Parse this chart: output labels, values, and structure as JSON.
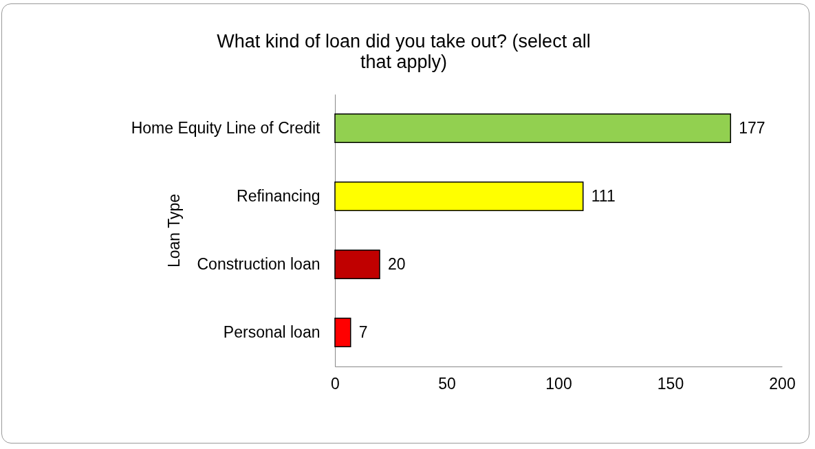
{
  "chart_data": {
    "type": "bar",
    "orientation": "horizontal",
    "title": "What kind of loan did you take out? (select all that apply)",
    "ylabel": "Loan Type",
    "categories": [
      "Home Equity Line of Credit",
      "Refinancing",
      "Construction loan",
      "Personal loan"
    ],
    "values": [
      177,
      111,
      20,
      7
    ],
    "colors": [
      "#92d050",
      "#ffff00",
      "#c00000",
      "#ff0000"
    ],
    "xlim": [
      0,
      200
    ],
    "xticks": [
      0,
      50,
      100,
      150,
      200
    ],
    "data_labels": true,
    "grid": false
  }
}
